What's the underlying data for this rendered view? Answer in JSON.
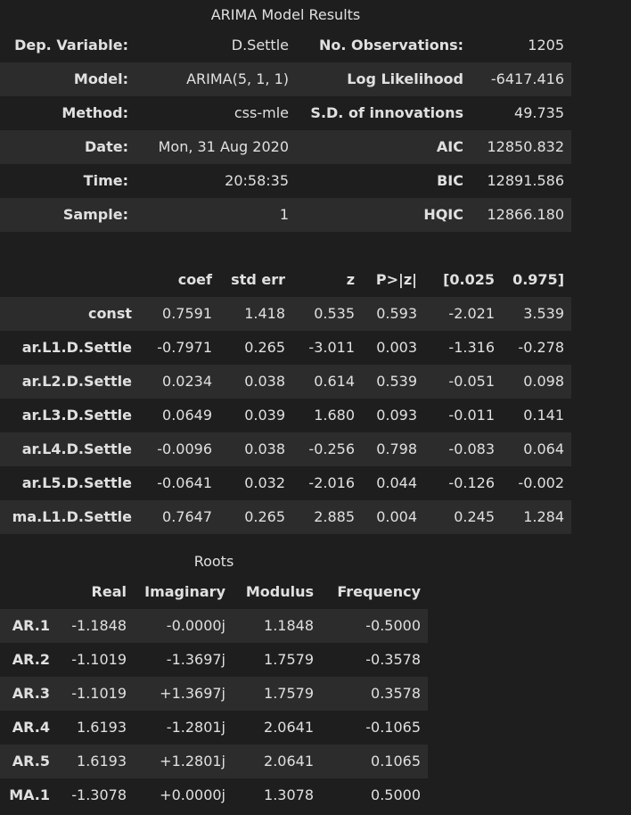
{
  "model_results": {
    "title": "ARIMA Model Results",
    "rows": [
      [
        "Dep. Variable:",
        "D.Settle",
        "No. Observations:",
        "1205"
      ],
      [
        "Model:",
        "ARIMA(5, 1, 1)",
        "Log Likelihood",
        "-6417.416"
      ],
      [
        "Method:",
        "css-mle",
        "S.D. of innovations",
        "49.735"
      ],
      [
        "Date:",
        "Mon, 31 Aug 2020",
        "AIC",
        "12850.832"
      ],
      [
        "Time:",
        "20:58:35",
        "BIC",
        "12891.586"
      ],
      [
        "Sample:",
        "1",
        "HQIC",
        "12866.180"
      ]
    ]
  },
  "coefficients": {
    "headers": [
      "",
      "coef",
      "std err",
      "z",
      "P>|z|",
      "[0.025",
      "0.975]"
    ],
    "rows": [
      [
        "const",
        "0.7591",
        "1.418",
        "0.535",
        "0.593",
        "-2.021",
        "3.539"
      ],
      [
        "ar.L1.D.Settle",
        "-0.7971",
        "0.265",
        "-3.011",
        "0.003",
        "-1.316",
        "-0.278"
      ],
      [
        "ar.L2.D.Settle",
        "0.0234",
        "0.038",
        "0.614",
        "0.539",
        "-0.051",
        "0.098"
      ],
      [
        "ar.L3.D.Settle",
        "0.0649",
        "0.039",
        "1.680",
        "0.093",
        "-0.011",
        "0.141"
      ],
      [
        "ar.L4.D.Settle",
        "-0.0096",
        "0.038",
        "-0.256",
        "0.798",
        "-0.083",
        "0.064"
      ],
      [
        "ar.L5.D.Settle",
        "-0.0641",
        "0.032",
        "-2.016",
        "0.044",
        "-0.126",
        "-0.002"
      ],
      [
        "ma.L1.D.Settle",
        "0.7647",
        "0.265",
        "2.885",
        "0.004",
        "0.245",
        "1.284"
      ]
    ]
  },
  "roots": {
    "title": "Roots",
    "headers": [
      "",
      "Real",
      "Imaginary",
      "Modulus",
      "Frequency"
    ],
    "rows": [
      [
        "AR.1",
        "-1.1848",
        "-0.0000j",
        "1.1848",
        "-0.5000"
      ],
      [
        "AR.2",
        "-1.1019",
        "-1.3697j",
        "1.7579",
        "-0.3578"
      ],
      [
        "AR.3",
        "-1.1019",
        "+1.3697j",
        "1.7579",
        "0.3578"
      ],
      [
        "AR.4",
        "1.6193",
        "-1.2801j",
        "2.0641",
        "-0.1065"
      ],
      [
        "AR.5",
        "1.6193",
        "+1.2801j",
        "2.0641",
        "0.1065"
      ],
      [
        "MA.1",
        "-1.3078",
        "+0.0000j",
        "1.3078",
        "0.5000"
      ]
    ]
  }
}
